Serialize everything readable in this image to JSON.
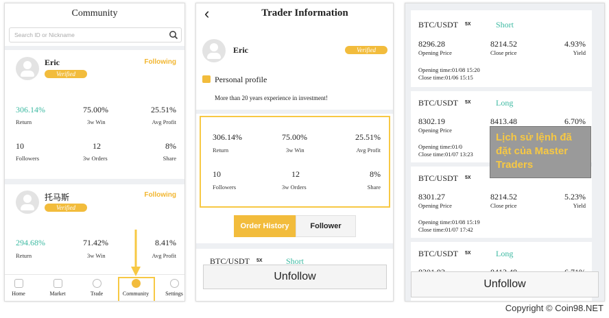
{
  "community": {
    "title": "Community",
    "search_placeholder": "Search ID or Nickname",
    "traders": [
      {
        "name": "Eric",
        "badge": "Verified",
        "follow": "Following",
        "return_value": "306.14%",
        "return_label": "Return",
        "win_value": "75.00%",
        "win_label": "3w Win",
        "profit_value": "25.51%",
        "profit_label": "Avg Profit",
        "followers_value": "10",
        "followers_label": "Followers",
        "orders_value": "12",
        "orders_label": "3w Orders",
        "share_value": "8%",
        "share_label": "Share"
      },
      {
        "name": "托马斯",
        "badge": "Verified",
        "follow": "Following",
        "return_value": "294.68%",
        "return_label": "Return",
        "win_value": "71.42%",
        "win_label": "3w Win",
        "profit_value": "8.41%",
        "profit_label": "Avg Profit"
      }
    ],
    "nav": [
      "Home",
      "Market",
      "Trade",
      "Community",
      "Settings"
    ]
  },
  "trader_info": {
    "back": "‹",
    "title": "Trader Information",
    "name": "Eric",
    "badge": "Verified",
    "profile_heading": "Personal profile",
    "profile_text": "More than 20 years experience in investment!",
    "stats": {
      "return_value": "306.14%",
      "return_label": "Return",
      "win_value": "75.00%",
      "win_label": "3w Win",
      "profit_value": "25.51%",
      "profit_label": "Avg Profit",
      "followers_value": "10",
      "followers_label": "Followers",
      "orders_value": "12",
      "orders_label": "3w Orders",
      "share_value": "8%",
      "share_label": "Share"
    },
    "tabs": [
      "Order History",
      "Follower"
    ],
    "preview_pair": "BTC/USDT",
    "preview_lev": "5X",
    "preview_side": "Short",
    "unfollow": "Unfollow"
  },
  "order_history": {
    "orders": [
      {
        "pair": "BTC/USDT",
        "lev": "5X",
        "side": "Short",
        "open": "8296.28",
        "close": "8214.52",
        "yield": "4.93%",
        "open_label": "Opening Price",
        "close_label": "Close price",
        "yield_label": "Yield",
        "open_time": "Opening time:01/08 15:20",
        "close_time": "Close time:01/06 15:15"
      },
      {
        "pair": "BTC/USDT",
        "lev": "5X",
        "side": "Long",
        "open": "8302.19",
        "close": "8413.48",
        "yield": "6.70%",
        "open_label": "Opening Price",
        "close_label": "",
        "yield_label": "",
        "open_time": "Opening time:01/0",
        "close_time": "Close time:01/07 13:23"
      },
      {
        "pair": "BTC/USDT",
        "lev": "5X",
        "side": "Short",
        "open": "8301.27",
        "close": "8214.52",
        "yield": "5.23%",
        "open_label": "Opening Price",
        "close_label": "Close price",
        "yield_label": "Yield",
        "open_time": "Opening time:01/08 15:19",
        "close_time": "Close time:01/07 17:42"
      },
      {
        "pair": "BTC/USDT",
        "lev": "5X",
        "side": "Long",
        "open": "8301.93",
        "close": "8413.48",
        "yield": "6.71%",
        "open_label": "",
        "close_label": "",
        "yield_label": "",
        "open_time": "",
        "close_time": ""
      }
    ],
    "annotation": "Lịch sử lệnh đã đặt của Master Traders",
    "unfollow": "Unfollow"
  },
  "copyright": "Copyright © Coin98.NET",
  "colors": {
    "accent": "#f2bc3c",
    "green": "#3bb9a1",
    "highlight": "#f7c843"
  }
}
